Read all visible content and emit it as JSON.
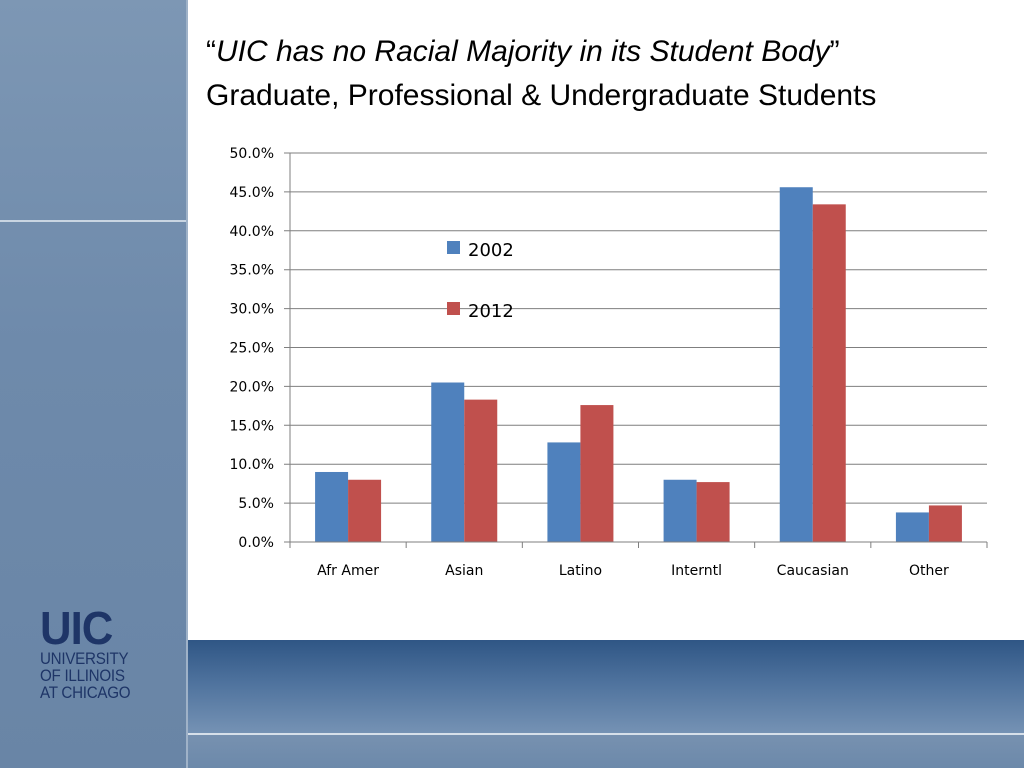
{
  "header": {
    "quote_open": "“",
    "title_italic": "UIC has no Racial Majority in its Student Body",
    "quote_close": "”",
    "subtitle": "Graduate, Professional & Undergraduate Students"
  },
  "logo": {
    "mark": "UIC",
    "line1": "UNIVERSITY",
    "line2": "OF ILLINOIS",
    "line3": "AT CHICAGO"
  },
  "colors": {
    "series_2002": "#4f81bd",
    "series_2012": "#c0504d",
    "gridline": "#7f7f7f"
  },
  "chart_data": {
    "type": "bar",
    "categories": [
      "Afr Amer",
      "Asian",
      "Latino",
      "Interntl",
      "Caucasian",
      "Other"
    ],
    "series": [
      {
        "name": "2002",
        "values": [
          9.0,
          20.5,
          12.8,
          8.0,
          45.6,
          3.8
        ]
      },
      {
        "name": "2012",
        "values": [
          8.0,
          18.3,
          17.6,
          7.7,
          43.4,
          4.7
        ]
      }
    ],
    "ylim": [
      0,
      50
    ],
    "ytick_step": 5,
    "ytick_format": "percent_1dp",
    "grid": true,
    "legend_placement": "inside-top-left"
  }
}
